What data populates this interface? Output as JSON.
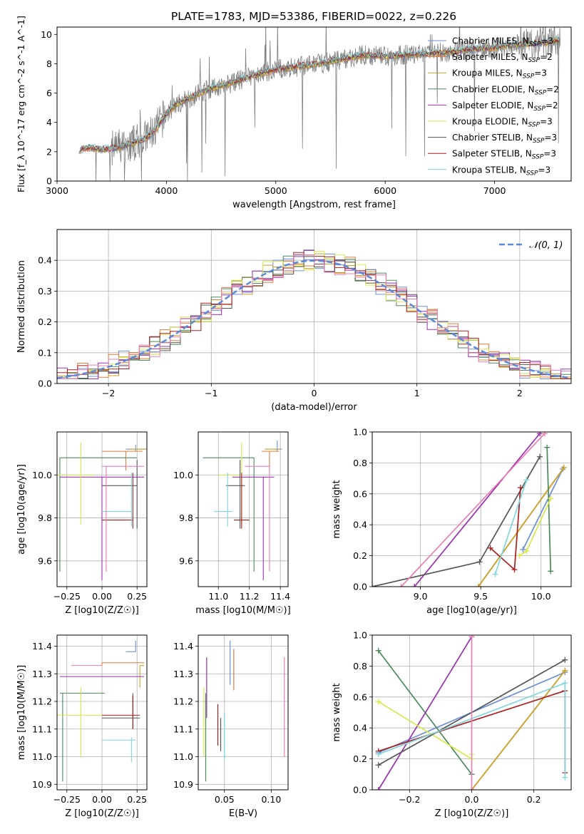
{
  "figure_title": "PLATE=1783, MJD=53386, FIBERID=0022, z=0.226",
  "colors": {
    "Chabrier MILES": "#6d8fd8",
    "Salpeter MILES": "#e07b39",
    "Kroupa MILES": "#c9a227",
    "Chabrier ELODIE": "#4a8a5a",
    "Salpeter ELODIE": "#9b30b0",
    "Kroupa ELODIE": "#d8e84c",
    "Chabrier STELIB": "#555555",
    "Salpeter STELIB": "#aa1f1f",
    "Kroupa STELIB": "#7fd6dc",
    "data": "#808080",
    "pink": "#e87fb5",
    "normal": "#5b8bd6"
  },
  "chart_data": [
    {
      "id": "spectrum",
      "type": "line",
      "title": "PLATE=1783, MJD=53386, FIBERID=0022, z=0.226",
      "xlabel": "wavelength [Angstrom, rest frame]",
      "ylabel": "Flux [f_λ 10^-17 erg cm^-2 s^-1 A^-1]",
      "xlim": [
        3000,
        7700
      ],
      "ylim": [
        0,
        10.5
      ],
      "xticks": [
        3000,
        4000,
        5000,
        6000,
        7000
      ],
      "yticks": [
        0,
        2,
        4,
        6,
        8,
        10
      ],
      "legend_position": "top-right",
      "legend": [
        {
          "model": "Chabrier MILES",
          "nssp": "3",
          "label": "Chabrier MILES, N"
        },
        {
          "model": "Salpeter MILES",
          "nssp": "2",
          "label": "Salpeter MILES, N"
        },
        {
          "model": "Kroupa MILES",
          "nssp": "3",
          "label": "Kroupa MILES, N"
        },
        {
          "model": "Chabrier ELODIE",
          "nssp": "2",
          "label": "Chabrier ELODIE, N"
        },
        {
          "model": "Salpeter ELODIE",
          "nssp": "2",
          "label": "Salpeter ELODIE, N"
        },
        {
          "model": "Kroupa ELODIE",
          "nssp": "3",
          "label": "Kroupa ELODIE, N"
        },
        {
          "model": "Chabrier STELIB",
          "nssp": "3",
          "label": "Chabrier STELIB, N"
        },
        {
          "model": "Salpeter STELIB",
          "nssp": "3",
          "label": "Salpeter STELIB, N"
        },
        {
          "model": "Kroupa STELIB",
          "nssp": "3",
          "label": "Kroupa STELIB, N"
        }
      ],
      "continuum": {
        "wavelength": [
          3200,
          3300,
          3400,
          3500,
          3600,
          3700,
          3800,
          3900,
          4000,
          4100,
          4200,
          4300,
          4400,
          4500,
          4600,
          4800,
          5000,
          5200,
          5400,
          5600,
          5800,
          6000,
          6200,
          6400,
          6600,
          6800,
          7000,
          7200,
          7400,
          7600
        ],
        "flux": [
          2.1,
          2.3,
          2.15,
          2.2,
          2.35,
          2.6,
          2.85,
          3.5,
          4.6,
          5.3,
          5.6,
          6.0,
          6.3,
          6.5,
          6.7,
          7.2,
          7.6,
          7.8,
          8.0,
          8.3,
          8.6,
          8.5,
          8.6,
          8.7,
          8.8,
          9.0,
          9.1,
          9.3,
          9.4,
          9.6
        ]
      }
    },
    {
      "id": "residuals",
      "type": "line",
      "xlabel": "(data-model)/error",
      "ylabel": "Normed distribution",
      "xlim": [
        -2.5,
        2.5
      ],
      "ylim": [
        0,
        0.5
      ],
      "xticks": [
        -2,
        -1,
        0,
        1,
        2
      ],
      "yticks": [
        0.0,
        0.1,
        0.2,
        0.3,
        0.4
      ],
      "legend_position": "top-right",
      "legend_label": "𝒩(0, 1)",
      "grid": true
    },
    {
      "id": "age_vs_Z",
      "type": "scatter",
      "xlabel": "Z [log10(Z/Z☉)]",
      "ylabel": "age  [log10(age/yr)]",
      "xlim": [
        -0.32,
        0.32
      ],
      "ylim": [
        9.48,
        10.2
      ],
      "xticks": [
        -0.25,
        0.0,
        0.25
      ],
      "yticks": [
        9.6,
        9.8,
        10.0
      ],
      "grid": true,
      "points": [
        {
          "model": "Chabrier MILES",
          "x": 0.24,
          "y": 10.12,
          "x_err": [
            0.07,
            0.07
          ],
          "y_err": [
            0.01,
            0.02
          ]
        },
        {
          "model": "Salpeter MILES",
          "x": 0.17,
          "y": 10.11,
          "x_err": [
            0.17,
            0.12
          ],
          "y_err": [
            0.09,
            0.0
          ]
        },
        {
          "model": "Kroupa MILES",
          "x": 0.27,
          "y": 10.12,
          "x_err": [
            0.07,
            0.05
          ],
          "y_err": [
            0.0,
            0.0
          ]
        },
        {
          "model": "Chabrier ELODIE",
          "x": -0.3,
          "y": 10.08,
          "x_err": [
            0.0,
            0.55
          ],
          "y_err": [
            0.53,
            0.0
          ]
        },
        {
          "model": "Salpeter ELODIE",
          "x": 0.0,
          "y": 9.99,
          "x_err": [
            0.3,
            0.3
          ],
          "y_err": [
            0.48,
            0.0
          ]
        },
        {
          "model": "Kroupa ELODIE",
          "x": -0.15,
          "y": 10.0,
          "x_err": [
            0.17,
            0.1
          ],
          "y_err": [
            0.23,
            0.15
          ]
        },
        {
          "model": "Chabrier STELIB",
          "x": 0.25,
          "y": 9.95,
          "x_err": [
            0.25,
            0.0
          ],
          "y_err": [
            0.2,
            0.12
          ]
        },
        {
          "model": "Salpeter STELIB",
          "x": 0.22,
          "y": 9.79,
          "x_err": [
            0.22,
            0.0
          ],
          "y_err": [
            0.04,
            0.22
          ]
        },
        {
          "model": "Kroupa STELIB",
          "x": 0.21,
          "y": 9.83,
          "x_err": [
            0.21,
            0.0
          ],
          "y_err": [
            0.07,
            0.18
          ]
        },
        {
          "model": "pink",
          "x": 0.03,
          "y": 10.04,
          "x_err": [
            0.03,
            0.27
          ],
          "y_err": [
            0.49,
            0.0
          ]
        }
      ]
    },
    {
      "id": "age_vs_mass",
      "type": "scatter",
      "xlabel": "mass [log10(M/M☉)]",
      "ylabel": "",
      "xlim": [
        10.87,
        11.45
      ],
      "ylim": [
        9.48,
        10.2
      ],
      "xticks": [
        11.0,
        11.2,
        11.4
      ],
      "yticks": [
        9.6,
        9.8,
        10.0
      ],
      "grid": true,
      "points": [
        {
          "model": "Chabrier MILES",
          "x": 11.38,
          "y": 10.12,
          "x_err": [
            0.02,
            0.03
          ],
          "y_err": [
            0.01,
            0.04
          ]
        },
        {
          "model": "Salpeter MILES",
          "x": 11.33,
          "y": 10.11,
          "x_err": [
            0.05,
            0.06
          ],
          "y_err": [
            0.09,
            0.0
          ]
        },
        {
          "model": "Kroupa MILES",
          "x": 11.35,
          "y": 10.12,
          "x_err": [
            0.05,
            0.05
          ],
          "y_err": [
            0.0,
            0.0
          ]
        },
        {
          "model": "Chabrier ELODIE",
          "x": 11.23,
          "y": 10.08,
          "x_err": [
            0.33,
            0.0
          ],
          "y_err": [
            0.53,
            0.0
          ]
        },
        {
          "model": "Salpeter ELODIE",
          "x": 11.29,
          "y": 9.99,
          "x_err": [
            0.2,
            0.07
          ],
          "y_err": [
            0.48,
            0.0
          ]
        },
        {
          "model": "Kroupa ELODIE",
          "x": 11.15,
          "y": 10.0,
          "x_err": [
            0.15,
            0.0
          ],
          "y_err": [
            0.23,
            0.15
          ]
        },
        {
          "model": "Chabrier STELIB",
          "x": 11.14,
          "y": 9.95,
          "x_err": [
            0.09,
            0.03
          ],
          "y_err": [
            0.2,
            0.12
          ]
        },
        {
          "model": "Salpeter STELIB",
          "x": 11.15,
          "y": 9.79,
          "x_err": [
            0.05,
            0.05
          ],
          "y_err": [
            0.04,
            0.22
          ]
        },
        {
          "model": "Kroupa STELIB",
          "x": 11.06,
          "y": 9.83,
          "x_err": [
            0.09,
            0.03
          ],
          "y_err": [
            0.07,
            0.18
          ]
        },
        {
          "model": "pink",
          "x": 11.33,
          "y": 10.04,
          "x_err": [
            0.16,
            0.0
          ],
          "y_err": [
            0.49,
            0.0
          ]
        }
      ]
    },
    {
      "id": "massweight_vs_age",
      "type": "line",
      "xlabel": "age  [log10(age/yr)]",
      "ylabel": "mass weight",
      "xlim": [
        8.6,
        10.25
      ],
      "ylim": [
        0,
        1.0
      ],
      "xticks": [
        9.0,
        9.5,
        10.0
      ],
      "yticks": [
        0.0,
        0.2,
        0.4,
        0.6,
        0.8,
        1.0
      ],
      "grid": true,
      "series": [
        {
          "model": "Chabrier MILES",
          "x": [
            9.85,
            10.18
          ],
          "y": [
            0.24,
            0.76
          ]
        },
        {
          "model": "Salpeter MILES",
          "x": [
            9.48,
            10.19
          ],
          "y": [
            0.0,
            0.77
          ]
        },
        {
          "model": "Kroupa MILES",
          "x": [
            9.48,
            10.19
          ],
          "y": [
            0.0,
            0.77
          ]
        },
        {
          "model": "Chabrier ELODIE",
          "x": [
            10.08,
            10.05
          ],
          "y": [
            0.1,
            0.9
          ]
        },
        {
          "model": "Salpeter ELODIE",
          "x": [
            8.95,
            9.99
          ],
          "y": [
            0.0,
            0.99
          ]
        },
        {
          "model": "Kroupa ELODIE",
          "x": [
            9.82,
            9.88,
            10.08
          ],
          "y": [
            0.2,
            0.23,
            0.57
          ]
        },
        {
          "model": "Chabrier STELIB",
          "x": [
            8.6,
            9.49,
            9.99
          ],
          "y": [
            0.0,
            0.16,
            0.84
          ]
        },
        {
          "model": "Salpeter STELIB",
          "x": [
            9.58,
            9.78,
            9.83
          ],
          "y": [
            0.25,
            0.11,
            0.64
          ]
        },
        {
          "model": "Kroupa STELIB",
          "x": [
            9.62,
            9.88
          ],
          "y": [
            0.08,
            0.69
          ]
        },
        {
          "model": "pink",
          "x": [
            8.84,
            10.03
          ],
          "y": [
            0.0,
            0.99
          ]
        }
      ]
    },
    {
      "id": "mass_vs_Z",
      "type": "scatter",
      "xlabel": "Z [log10(Z/Z☉)]",
      "ylabel": "mass [log10(M/M☉)]",
      "xlim": [
        -0.32,
        0.32
      ],
      "ylim": [
        10.88,
        11.44
      ],
      "xticks": [
        -0.25,
        0.0,
        0.25
      ],
      "yticks": [
        10.9,
        11.0,
        11.1,
        11.2,
        11.3,
        11.4
      ],
      "grid": true,
      "points": [
        {
          "model": "Chabrier MILES",
          "x": 0.24,
          "y": 11.38,
          "x_err": [
            0.07,
            0.0
          ],
          "y_err": [
            0.0,
            0.04
          ]
        },
        {
          "model": "Salpeter MILES",
          "x": 0.0,
          "y": 11.34,
          "x_err": [
            0.0,
            0.3
          ],
          "y_err": [
            0.01,
            0.0
          ]
        },
        {
          "model": "Kroupa MILES",
          "x": 0.27,
          "y": 11.33,
          "x_err": [
            0.0,
            0.03
          ],
          "y_err": [
            0.08,
            0.0
          ]
        },
        {
          "model": "Chabrier ELODIE",
          "x": -0.28,
          "y": 11.23,
          "x_err": [
            0.02,
            0.3
          ],
          "y_err": [
            0.32,
            0.0
          ]
        },
        {
          "model": "Salpeter ELODIE",
          "x": -0.28,
          "y": 11.29,
          "x_err": [
            0.02,
            0.58
          ],
          "y_err": [
            0.0,
            0.0
          ]
        },
        {
          "model": "Kroupa ELODIE",
          "x": -0.15,
          "y": 11.15,
          "x_err": [
            0.17,
            0.15
          ],
          "y_err": [
            0.15,
            0.1
          ]
        },
        {
          "model": "Chabrier STELIB",
          "x": 0.22,
          "y": 11.14,
          "x_err": [
            0.22,
            0.05
          ],
          "y_err": [
            0.04,
            0.09
          ]
        },
        {
          "model": "Salpeter STELIB",
          "x": 0.22,
          "y": 11.15,
          "x_err": [
            0.22,
            0.05
          ],
          "y_err": [
            0.05,
            0.07
          ]
        },
        {
          "model": "Kroupa STELIB",
          "x": 0.21,
          "y": 11.06,
          "x_err": [
            0.21,
            0.03
          ],
          "y_err": [
            0.08,
            0.01
          ]
        },
        {
          "model": "pink",
          "x": 0.0,
          "y": 11.33,
          "x_err": [
            0.22,
            0.0
          ],
          "y_err": [
            0.0,
            0.0
          ]
        }
      ]
    },
    {
      "id": "mass_vs_EBV",
      "type": "scatter",
      "xlabel": "E(B-V)",
      "ylabel": "",
      "xlim": [
        0.022,
        0.118
      ],
      "ylim": [
        10.88,
        11.44
      ],
      "xticks": [
        0.05,
        0.1
      ],
      "yticks": [
        10.9,
        11.0,
        11.1,
        11.2,
        11.3,
        11.4
      ],
      "grid": true,
      "segments": [
        {
          "model": "Kroupa ELODIE",
          "x": 0.028,
          "y": [
            11.0,
            11.25
          ]
        },
        {
          "model": "Chabrier ELODIE",
          "x": 0.03,
          "y": [
            10.91,
            11.23
          ]
        },
        {
          "model": "Salpeter ELODIE",
          "x": 0.031,
          "y": [
            11.14,
            11.36
          ]
        },
        {
          "model": "Kroupa STELIB",
          "x": 0.05,
          "y": [
            10.99,
            11.16
          ]
        },
        {
          "model": "Salpeter STELIB",
          "x": 0.043,
          "y": [
            11.04,
            11.19
          ]
        },
        {
          "model": "Chabrier STELIB",
          "x": 0.046,
          "y": [
            11.02,
            11.14
          ]
        },
        {
          "model": "Chabrier MILES",
          "x": 0.056,
          "y": [
            11.26,
            11.42
          ]
        },
        {
          "model": "Salpeter MILES",
          "x": 0.06,
          "y": [
            11.24,
            11.39
          ]
        },
        {
          "model": "pink",
          "x": 0.114,
          "y": [
            11.0,
            11.36
          ]
        }
      ]
    },
    {
      "id": "massweight_vs_Z",
      "type": "line",
      "xlabel": "Z [log10(Z/Z☉)]",
      "ylabel": "mass weight",
      "xlim": [
        -0.32,
        0.32
      ],
      "ylim": [
        0,
        1.0
      ],
      "xticks": [
        -0.2,
        0.0,
        0.2
      ],
      "yticks": [
        0.0,
        0.2,
        0.4,
        0.6,
        0.8,
        1.0
      ],
      "grid": true,
      "series": [
        {
          "model": "Chabrier MILES",
          "x": [
            -0.3,
            0.3
          ],
          "y": [
            0.24,
            0.76
          ]
        },
        {
          "model": "Salpeter MILES",
          "x": [
            0.0,
            0.3
          ],
          "y": [
            0.0,
            0.77
          ]
        },
        {
          "model": "Kroupa MILES",
          "x": [
            0.0,
            0.3
          ],
          "y": [
            0.0,
            0.77
          ]
        },
        {
          "model": "Chabrier ELODIE",
          "x": [
            -0.3,
            0.0
          ],
          "y": [
            0.9,
            0.1
          ]
        },
        {
          "model": "Salpeter ELODIE",
          "x": [
            -0.3,
            0.0
          ],
          "y": [
            0.0,
            0.99
          ]
        },
        {
          "model": "Kroupa ELODIE",
          "x": [
            -0.3,
            0.0,
            0.0
          ],
          "y": [
            0.57,
            0.2,
            0.23
          ]
        },
        {
          "model": "Chabrier STELIB",
          "x": [
            -0.3,
            0.3
          ],
          "y": [
            0.16,
            0.84
          ]
        },
        {
          "model": "Salpeter STELIB",
          "x": [
            -0.3,
            0.3,
            0.3
          ],
          "y": [
            0.25,
            0.64,
            0.11
          ]
        },
        {
          "model": "Kroupa STELIB",
          "x": [
            -0.3,
            0.3,
            0.3
          ],
          "y": [
            0.23,
            0.69,
            0.08
          ]
        },
        {
          "model": "pink",
          "x": [
            0.0,
            0.0
          ],
          "y": [
            0.0,
            0.99
          ]
        }
      ]
    }
  ]
}
